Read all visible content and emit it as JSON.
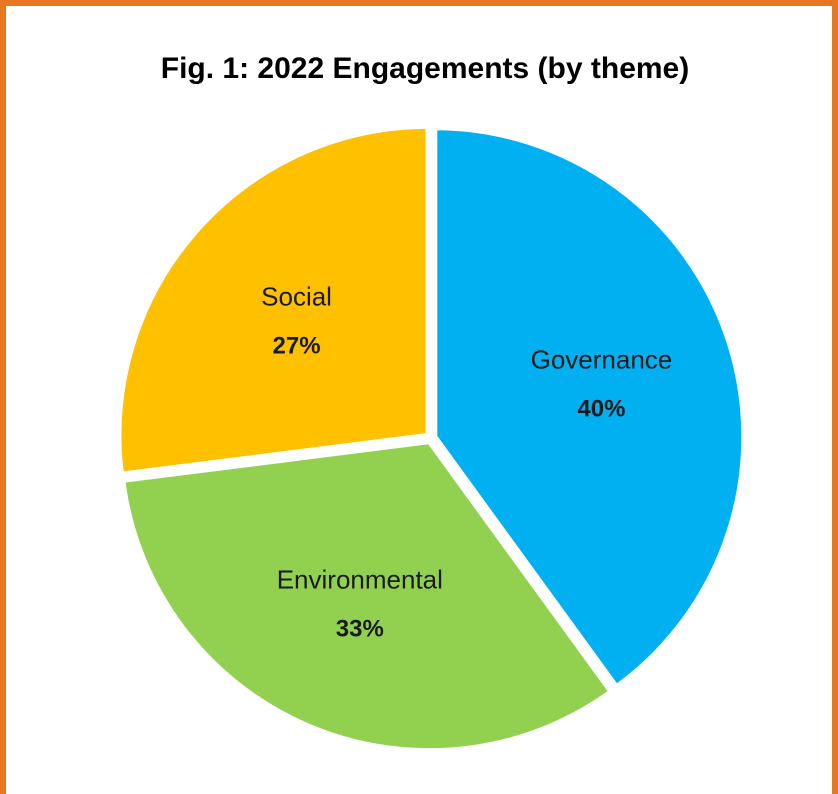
{
  "chart_data": {
    "type": "pie",
    "title": "Fig. 1: 2022 Engagements (by theme)",
    "slices": [
      {
        "label": "Governance",
        "value": 40,
        "value_label": "40%",
        "color": "#00B0F0"
      },
      {
        "label": "Environmental",
        "value": 33,
        "value_label": "33%",
        "color": "#92D050"
      },
      {
        "label": "Social",
        "value": 27,
        "value_label": "27%",
        "color": "#FFC000"
      }
    ],
    "start": "12 o'clock",
    "direction": "clockwise"
  },
  "frame": {
    "border_color": "#E87722"
  }
}
